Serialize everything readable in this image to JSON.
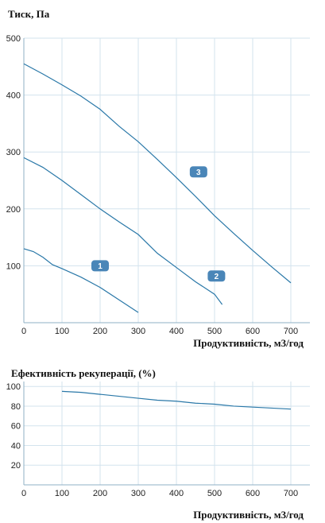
{
  "chart_data": [
    {
      "type": "line",
      "ylabel": "Тиск, Па",
      "xlabel": "Продуктивність, м3/год",
      "xlim": [
        0,
        750
      ],
      "ylim": [
        0,
        500
      ],
      "xticks": [
        0,
        100,
        200,
        300,
        400,
        500,
        600,
        700
      ],
      "yticks": [
        100,
        200,
        300,
        400,
        500
      ],
      "grid": true,
      "line_color": "#2a78a8",
      "badge_color": "#4a86b8",
      "series": [
        {
          "name": "1",
          "x": [
            0,
            25,
            50,
            75,
            100,
            150,
            200,
            250,
            300
          ],
          "y": [
            130,
            125,
            115,
            102,
            95,
            80,
            62,
            40,
            18
          ]
        },
        {
          "name": "2",
          "x": [
            0,
            50,
            100,
            150,
            200,
            250,
            300,
            350,
            400,
            450,
            500,
            520
          ],
          "y": [
            290,
            273,
            250,
            225,
            200,
            177,
            155,
            122,
            97,
            72,
            50,
            32
          ]
        },
        {
          "name": "3",
          "x": [
            0,
            50,
            100,
            150,
            200,
            250,
            300,
            350,
            400,
            450,
            500,
            550,
            600,
            650,
            700
          ],
          "y": [
            455,
            437,
            418,
            398,
            375,
            345,
            318,
            287,
            255,
            222,
            188,
            157,
            127,
            98,
            70
          ]
        }
      ]
    },
    {
      "type": "line",
      "title": "Ефективність рекуперації, (%)",
      "xlabel": "Продуктивність, м3/год",
      "xlim": [
        0,
        750
      ],
      "ylim": [
        0,
        105
      ],
      "xticks": [
        0,
        100,
        200,
        300,
        400,
        500,
        600,
        700
      ],
      "yticks": [
        20,
        40,
        60,
        80,
        100
      ],
      "grid": true,
      "line_color": "#2a78a8",
      "series": [
        {
          "x": [
            100,
            150,
            200,
            250,
            300,
            350,
            400,
            450,
            500,
            550,
            600,
            650,
            700
          ],
          "y": [
            95,
            94,
            92,
            90,
            88,
            86,
            85,
            83,
            82,
            80,
            79,
            78,
            77
          ]
        }
      ]
    }
  ]
}
